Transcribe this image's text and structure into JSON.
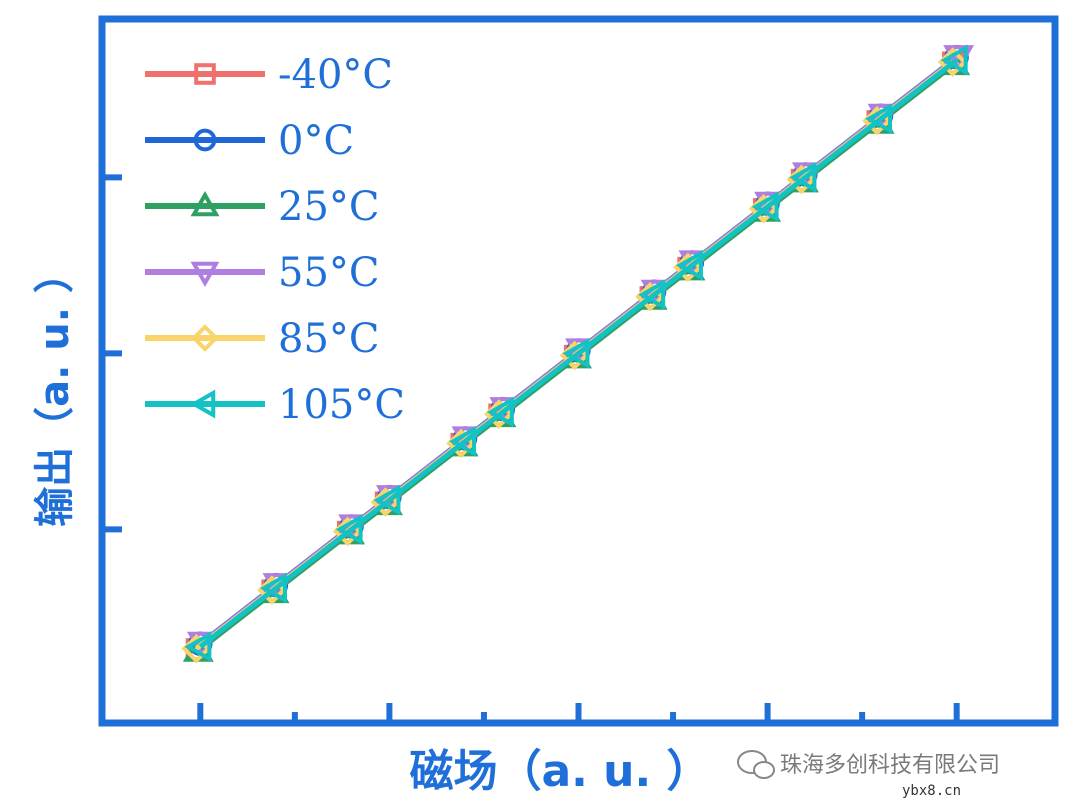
{
  "chart_data": {
    "type": "line",
    "xlabel": "磁场（a. u. ）",
    "ylabel": "输出（a. u. ）",
    "x": [
      0,
      0.1,
      0.2,
      0.25,
      0.35,
      0.4,
      0.5,
      0.6,
      0.65,
      0.75,
      0.8,
      0.9,
      1.0
    ],
    "xlim": [
      -0.13,
      1.13
    ],
    "ylim": [
      -0.13,
      1.07
    ],
    "xticks_major": [
      0,
      0.25,
      0.5,
      0.75,
      1.0
    ],
    "xticks_minor": [
      0.125,
      0.375,
      0.625,
      0.875
    ],
    "yticks_major": [
      0.2,
      0.5,
      0.8
    ],
    "grid": false,
    "legend": "top-left",
    "series": [
      {
        "name": "-40°C",
        "color": "#f0706e",
        "marker": "square",
        "values": [
          0,
          0.1,
          0.2,
          0.25,
          0.35,
          0.4,
          0.5,
          0.6,
          0.65,
          0.75,
          0.8,
          0.9,
          1.0
        ]
      },
      {
        "name": "0°C",
        "color": "#1f66d6",
        "marker": "circle",
        "values": [
          0,
          0.1,
          0.2,
          0.25,
          0.35,
          0.4,
          0.5,
          0.6,
          0.65,
          0.75,
          0.8,
          0.9,
          1.0
        ]
      },
      {
        "name": "25°C",
        "color": "#2ea062",
        "marker": "triangle-up",
        "values": [
          0,
          0.1,
          0.2,
          0.25,
          0.35,
          0.4,
          0.5,
          0.6,
          0.65,
          0.75,
          0.8,
          0.9,
          1.0
        ]
      },
      {
        "name": "55°C",
        "color": "#b07ee0",
        "marker": "triangle-down",
        "values": [
          0,
          0.1,
          0.2,
          0.25,
          0.35,
          0.4,
          0.5,
          0.6,
          0.65,
          0.75,
          0.8,
          0.9,
          1.0
        ]
      },
      {
        "name": "85°C",
        "color": "#f8d46a",
        "marker": "diamond",
        "values": [
          0,
          0.1,
          0.2,
          0.25,
          0.35,
          0.4,
          0.5,
          0.6,
          0.65,
          0.75,
          0.8,
          0.9,
          1.0
        ]
      },
      {
        "name": "105°C",
        "color": "#12c2c4",
        "marker": "triangle-left",
        "values": [
          0,
          0.1,
          0.2,
          0.25,
          0.35,
          0.4,
          0.5,
          0.6,
          0.65,
          0.75,
          0.8,
          0.9,
          1.0
        ]
      }
    ]
  },
  "style": {
    "frame_color": "#1f6fd8"
  },
  "watermark": {
    "text": "珠海多创科技有限公司",
    "site": "ybx8.cn",
    "icon": "chat-bubble-icon"
  }
}
